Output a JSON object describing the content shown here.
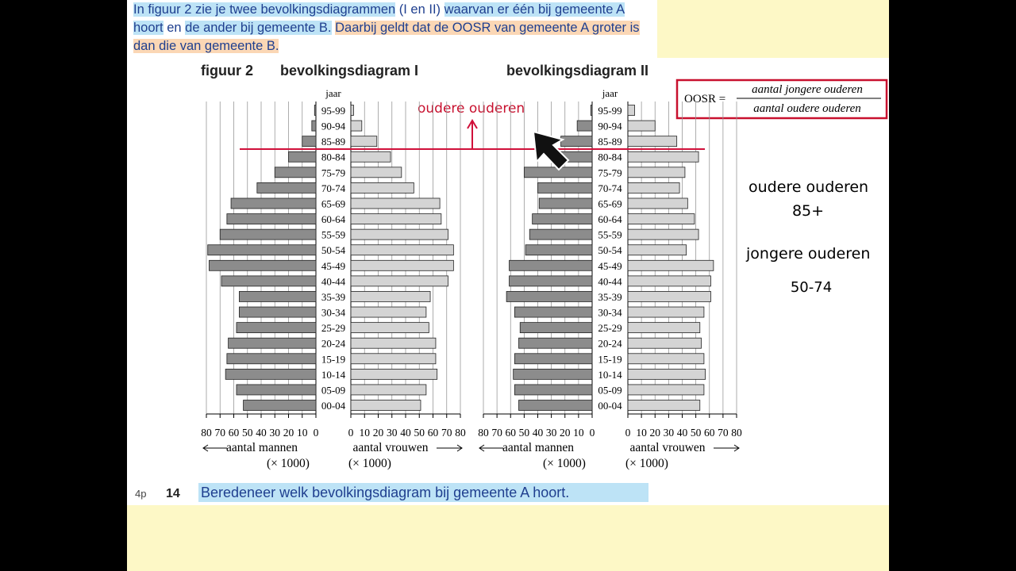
{
  "intro": [
    {
      "text": "In figuur 2 zie je twee bevolkingsdiagrammen",
      "highlight": "blue"
    },
    {
      "text": " (I en II) ",
      "highlight": "none"
    },
    {
      "text": "waarvan er één bij gemeente A hoort",
      "highlight": "blue"
    },
    {
      "text": " en ",
      "highlight": "none"
    },
    {
      "text": "de ander bij gemeente B.",
      "highlight": "blue"
    },
    {
      "text": " ",
      "highlight": "none"
    },
    {
      "text": "Daarbij geldt dat de OOSR van gemeente A groter is dan die van gemeente B.",
      "highlight": "orange"
    }
  ],
  "figure_label": "figuur 2",
  "unit": "(× 1000)",
  "formula": {
    "lhs": "OOSR =",
    "numerator": "aantal jongere ouderen",
    "denominator": "aantal oudere ouderen"
  },
  "notes": {
    "top": "oudere ouderen",
    "old": "oudere ouderen",
    "old_range": "85+",
    "young": "jongere ouderen",
    "young_range": "50-74"
  },
  "question": {
    "points": "4p",
    "number": "14",
    "text": "Beredeneer welk bevolkingsdiagram bij gemeente A hoort."
  },
  "chart_data": [
    {
      "type": "pyramid",
      "title": "bevolkingsdiagram I",
      "category_label": "jaar",
      "categories": [
        "95-99",
        "90-94",
        "85-89",
        "80-84",
        "75-79",
        "70-74",
        "65-69",
        "60-64",
        "55-59",
        "50-54",
        "45-49",
        "40-44",
        "35-39",
        "30-34",
        "25-29",
        "20-24",
        "15-19",
        "10-14",
        "05-09",
        "00-04"
      ],
      "series": [
        {
          "name": "aantal mannen",
          "color": "#8c8c8c",
          "values": [
            1,
            3,
            10,
            20,
            30,
            43,
            62,
            65,
            70,
            79,
            78,
            69,
            56,
            56,
            58,
            64,
            65,
            66,
            58,
            53
          ]
        },
        {
          "name": "aantal vrouwen",
          "color": "#d4d4d4",
          "values": [
            2,
            8,
            19,
            29,
            37,
            46,
            65,
            66,
            71,
            75,
            75,
            71,
            58,
            55,
            57,
            62,
            62,
            63,
            55,
            51
          ]
        }
      ],
      "xlim": [
        0,
        80
      ],
      "xticks": [
        0,
        10,
        20,
        30,
        40,
        50,
        60,
        70,
        80
      ],
      "grid": true
    },
    {
      "type": "pyramid",
      "title": "bevolkingsdiagram II",
      "category_label": "jaar",
      "categories": [
        "95-99",
        "90-94",
        "85-89",
        "80-84",
        "75-79",
        "70-74",
        "65-69",
        "60-64",
        "55-59",
        "50-54",
        "45-49",
        "40-44",
        "35-39",
        "30-34",
        "25-29",
        "20-24",
        "15-19",
        "10-14",
        "05-09",
        "00-04"
      ],
      "series": [
        {
          "name": "aantal mannen",
          "color": "#8c8c8c",
          "values": [
            1,
            11,
            23,
            29,
            50,
            40,
            39,
            44,
            46,
            49,
            61,
            61,
            63,
            57,
            53,
            54,
            57,
            58,
            57,
            54
          ]
        },
        {
          "name": "aantal vrouwen",
          "color": "#d4d4d4",
          "values": [
            5,
            20,
            36,
            52,
            42,
            38,
            44,
            49,
            52,
            43,
            63,
            61,
            61,
            56,
            53,
            54,
            56,
            57,
            56,
            53
          ]
        }
      ],
      "xlim": [
        0,
        80
      ],
      "xticks": [
        0,
        10,
        20,
        30,
        40,
        50,
        60,
        70,
        80
      ],
      "grid": true
    }
  ]
}
